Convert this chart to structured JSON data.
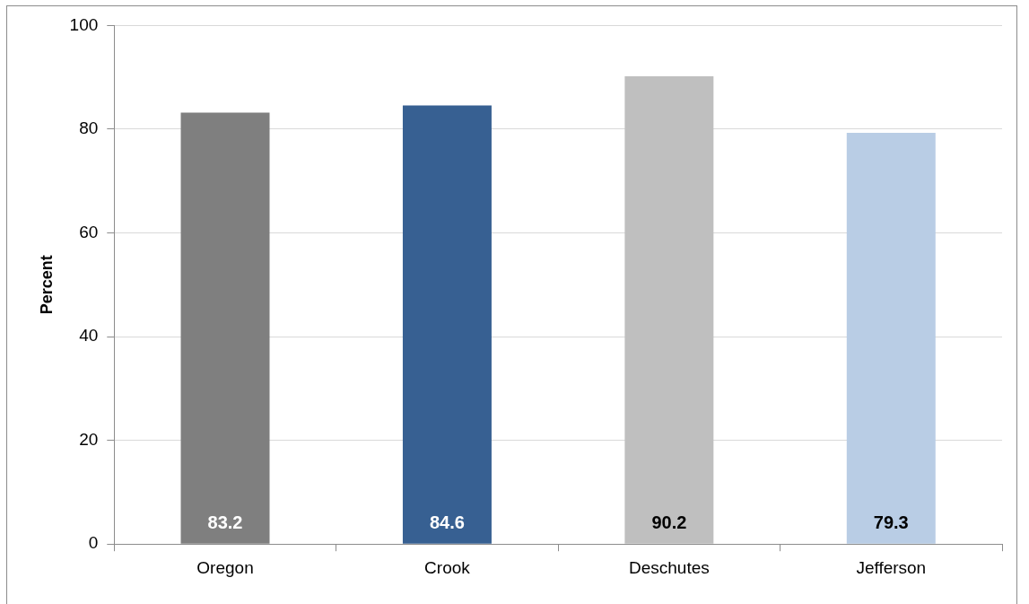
{
  "chart_data": {
    "type": "bar",
    "ylabel": "Percent",
    "categories": [
      "Oregon",
      "Crook",
      "Deschutes",
      "Jefferson"
    ],
    "values": [
      83.2,
      84.6,
      90.2,
      79.3
    ],
    "colors": [
      "#7f7f7f",
      "#376092",
      "#bfbfbf",
      "#b9cde5"
    ],
    "ylim": [
      0,
      100
    ],
    "yticks": [
      0,
      20,
      40,
      60,
      80,
      100
    ],
    "grid": "y",
    "legend": false,
    "data_labels": true
  }
}
